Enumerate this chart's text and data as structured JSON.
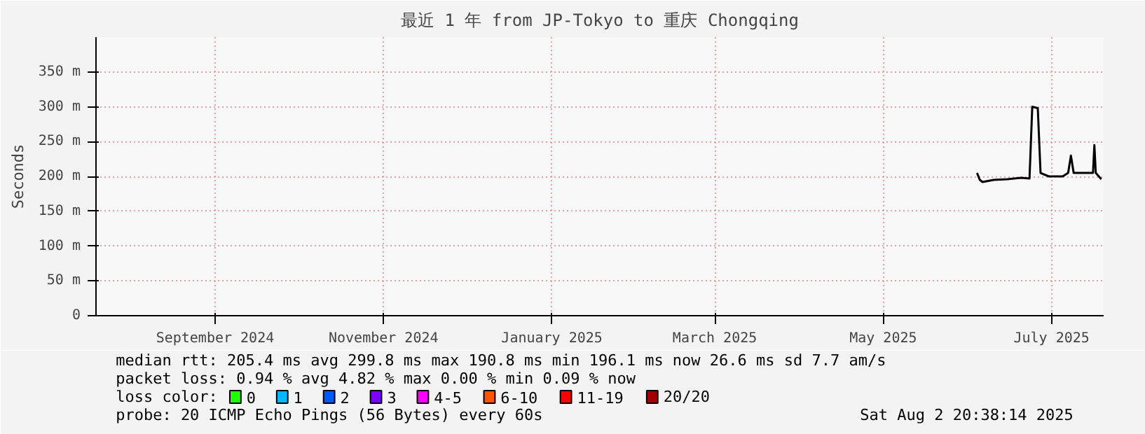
{
  "chart_data": {
    "type": "line",
    "title": "最近 1 年 from JP-Tokyo to 重庆 Chongqing",
    "ylabel": "Seconds",
    "xlim": [
      "2024-08-02T20:38",
      "2025-08-02T20:38"
    ],
    "xticks": [
      {
        "value": "2024-09-15",
        "label": "September 2024"
      },
      {
        "value": "2024-11-15",
        "label": "November 2024"
      },
      {
        "value": "2025-01-15",
        "label": "January 2025"
      },
      {
        "value": "2025-03-15",
        "label": "March 2025"
      },
      {
        "value": "2025-05-15",
        "label": "May 2025"
      },
      {
        "value": "2025-07-15",
        "label": "July 2025"
      }
    ],
    "ylim": [
      0,
      400
    ],
    "yticks": [
      0,
      {
        "value": 50,
        "label": "50 m"
      },
      {
        "value": 100,
        "label": "100 m"
      },
      {
        "value": 150,
        "label": "150 m"
      },
      {
        "value": 200,
        "label": "200 m"
      },
      {
        "value": 250,
        "label": "250 m"
      },
      {
        "value": 300,
        "label": "300 m"
      },
      {
        "value": 350,
        "label": "350 m"
      }
    ],
    "grid": true,
    "legend": "bottom",
    "legend_title": "loss color:",
    "series": [
      {
        "color": "#000000",
        "x": [
          "2025-06-18",
          "2025-06-19",
          "2025-06-20",
          "2025-06-24",
          "2025-06-29",
          "2025-07-04",
          "2025-07-07",
          "2025-07-08",
          "2025-07-10",
          "2025-07-11",
          "2025-07-14",
          "2025-07-19",
          "2025-07-21",
          "2025-07-22",
          "2025-07-23",
          "2025-07-27",
          "2025-07-30",
          "2025-07-30T12:00",
          "2025-07-31",
          "2025-08-02"
        ],
        "values": [
          205,
          195,
          192,
          195,
          196,
          198,
          197,
          300,
          298,
          205,
          200,
          200,
          205,
          230,
          205,
          205,
          205,
          245,
          205,
          196
        ]
      },
      {
        "name": "0",
        "color": "#26ff00"
      },
      {
        "name": "1",
        "color": "#00b8ff"
      },
      {
        "name": "2",
        "color": "#0059ff"
      },
      {
        "name": "3",
        "color": "#7e00ff"
      },
      {
        "name": "4-5",
        "color": "#ff00ff"
      },
      {
        "name": "6-10",
        "color": "#ff5500"
      },
      {
        "name": "11-19",
        "color": "#ff0000"
      },
      {
        "name": "20/20",
        "color": "#a10000"
      }
    ],
    "annotations": [
      "median rtt:  205.4 ms avg  299.8 ms max  190.8 ms min  196.1 ms now  26.6 ms sd  7.7   am/s",
      "packet loss: 0.94 % avg  4.82 % max  0.00 % min  0.09 % now",
      "probe:        20 ICMP Echo Pings (56 Bytes) every 60s",
      "Sat Aug  2 20:38:14 2025"
    ]
  }
}
